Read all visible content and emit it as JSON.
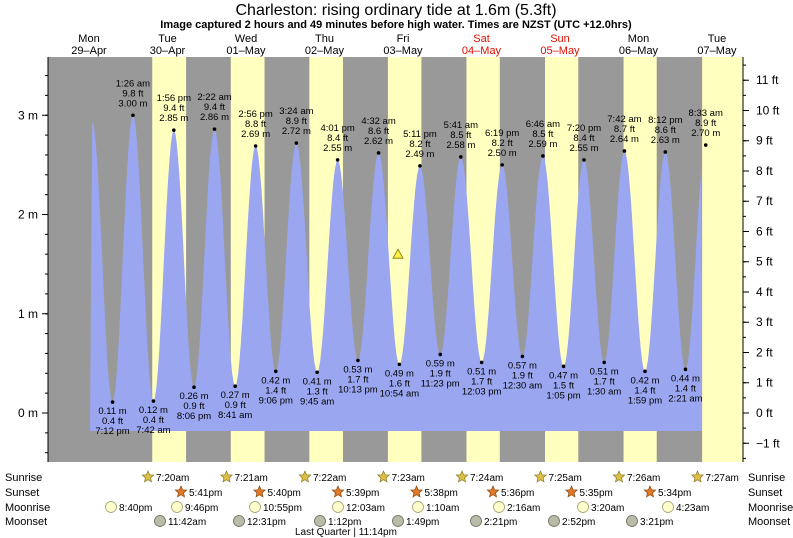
{
  "title": "Charleston: rising  ordinary tide at 1.6m (5.3ft)",
  "subtitle": "Image captured 2 hours and 49 minutes before high water. Times are NZST (UTC +12.0hrs)",
  "colors": {
    "night": "#999999",
    "day": "#ffffc0",
    "water": "#9aa6f0",
    "weekend_day": "#dd1100",
    "weekday_day": "#000000"
  },
  "chart_data": {
    "type": "area",
    "title": "Charleston: rising  ordinary tide at 1.6m (5.3ft)",
    "left_axis": {
      "unit": "m",
      "ticks": [
        0,
        1,
        2,
        3
      ],
      "tick_labels": [
        "0 m",
        "1 m",
        "2 m",
        "3 m"
      ]
    },
    "right_axis": {
      "unit": "ft",
      "ticks": [
        -1,
        0,
        1,
        2,
        3,
        4,
        5,
        6,
        7,
        8,
        9,
        10,
        11
      ],
      "tick_labels": [
        "−1 ft",
        "0 ft",
        "1 ft",
        "2 ft",
        "3 ft",
        "4 ft",
        "5 ft",
        "6 ft",
        "7 ft",
        "8 ft",
        "9 ft",
        "10 ft",
        "11 ft"
      ]
    },
    "ylim_m": [
      -0.5,
      3.6
    ],
    "days": [
      {
        "name": "Mon",
        "date": "29–Apr",
        "weekend": false
      },
      {
        "name": "Tue",
        "date": "30–Apr",
        "weekend": false
      },
      {
        "name": "Wed",
        "date": "01–May",
        "weekend": false
      },
      {
        "name": "Thu",
        "date": "02–May",
        "weekend": false
      },
      {
        "name": "Fri",
        "date": "03–May",
        "weekend": false
      },
      {
        "name": "Sat",
        "date": "04–May",
        "weekend": true
      },
      {
        "name": "Sun",
        "date": "05–May",
        "weekend": true
      },
      {
        "name": "Mon",
        "date": "06–May",
        "weekend": false
      },
      {
        "name": "Tue",
        "date": "07–May",
        "weekend": false
      }
    ],
    "tides": [
      {
        "kind": "low",
        "day": "Mon",
        "time": "7:12 pm",
        "m": "0.11 m",
        "ft": "0.4 ft",
        "value": 0.11
      },
      {
        "kind": "high",
        "day": "Tue",
        "time": "1:26 am",
        "m": "3.00 m",
        "ft": "9.8 ft",
        "value": 3.0
      },
      {
        "kind": "low",
        "day": "Tue",
        "time": "7:42 am",
        "m": "0.12 m",
        "ft": "0.4 ft",
        "value": 0.12
      },
      {
        "kind": "high",
        "day": "Tue",
        "time": "1:56 pm",
        "m": "2.85 m",
        "ft": "9.4 ft",
        "value": 2.85
      },
      {
        "kind": "low",
        "day": "Tue",
        "time": "8:06 pm",
        "m": "0.26 m",
        "ft": "0.9 ft",
        "value": 0.26
      },
      {
        "kind": "high",
        "day": "Wed",
        "time": "2:22 am",
        "m": "2.86 m",
        "ft": "9.4 ft",
        "value": 2.86
      },
      {
        "kind": "low",
        "day": "Wed",
        "time": "8:41 am",
        "m": "0.27 m",
        "ft": "0.9 ft",
        "value": 0.27
      },
      {
        "kind": "high",
        "day": "Wed",
        "time": "2:56 pm",
        "m": "2.69 m",
        "ft": "8.8 ft",
        "value": 2.69
      },
      {
        "kind": "low",
        "day": "Wed",
        "time": "9:06 pm",
        "m": "0.42 m",
        "ft": "1.4 ft",
        "value": 0.42
      },
      {
        "kind": "high",
        "day": "Thu",
        "time": "3:24 am",
        "m": "2.72 m",
        "ft": "8.9 ft",
        "value": 2.72
      },
      {
        "kind": "low",
        "day": "Thu",
        "time": "9:45 am",
        "m": "0.41 m",
        "ft": "1.3 ft",
        "value": 0.41
      },
      {
        "kind": "high",
        "day": "Thu",
        "time": "4:01 pm",
        "m": "2.55 m",
        "ft": "8.4 ft",
        "value": 2.55
      },
      {
        "kind": "low",
        "day": "Thu",
        "time": "10:13 pm",
        "m": "0.53 m",
        "ft": "1.7 ft",
        "value": 0.53
      },
      {
        "kind": "high",
        "day": "Fri",
        "time": "4:32 am",
        "m": "2.62 m",
        "ft": "8.6 ft",
        "value": 2.62
      },
      {
        "kind": "low",
        "day": "Fri",
        "time": "10:54 am",
        "m": "0.49 m",
        "ft": "1.6 ft",
        "value": 0.49
      },
      {
        "kind": "high",
        "day": "Fri",
        "time": "5:11 pm",
        "m": "2.49 m",
        "ft": "8.2 ft",
        "value": 2.49
      },
      {
        "kind": "low",
        "day": "Fri",
        "time": "11:23 pm",
        "m": "0.59 m",
        "ft": "1.9 ft",
        "value": 0.59
      },
      {
        "kind": "high",
        "day": "Sat",
        "time": "5:41 am",
        "m": "2.58 m",
        "ft": "8.5 ft",
        "value": 2.58
      },
      {
        "kind": "low",
        "day": "Sat",
        "time": "12:03 pm",
        "m": "0.51 m",
        "ft": "1.7 ft",
        "value": 0.51
      },
      {
        "kind": "high",
        "day": "Sat",
        "time": "6:19 pm",
        "m": "2.50 m",
        "ft": "8.2 ft",
        "value": 2.5
      },
      {
        "kind": "low",
        "day": "Sun",
        "time": "12:30 am",
        "m": "0.57 m",
        "ft": "1.9 ft",
        "value": 0.57
      },
      {
        "kind": "high",
        "day": "Sun",
        "time": "6:46 am",
        "m": "2.59 m",
        "ft": "8.5 ft",
        "value": 2.59
      },
      {
        "kind": "low",
        "day": "Sun",
        "time": "1:05 pm",
        "m": "0.47 m",
        "ft": "1.5 ft",
        "value": 0.47
      },
      {
        "kind": "high",
        "day": "Sun",
        "time": "7:20 pm",
        "m": "2.55 m",
        "ft": "8.4 ft",
        "value": 2.55
      },
      {
        "kind": "low",
        "day": "Mon",
        "time": "1:30 am",
        "m": "0.51 m",
        "ft": "1.7 ft",
        "value": 0.51
      },
      {
        "kind": "high",
        "day": "Mon",
        "time": "7:42 am",
        "m": "2.64 m",
        "ft": "8.7 ft",
        "value": 2.64
      },
      {
        "kind": "low",
        "day": "Mon",
        "time": "1:59 pm",
        "m": "0.42 m",
        "ft": "1.4 ft",
        "value": 0.42
      },
      {
        "kind": "high",
        "day": "Mon",
        "time": "8:12 pm",
        "m": "2.63 m",
        "ft": "8.6 ft",
        "value": 2.63
      },
      {
        "kind": "low",
        "day": "Tue",
        "time": "2:21 am",
        "m": "0.44 m",
        "ft": "1.4 ft",
        "value": 0.44
      },
      {
        "kind": "high",
        "day": "Tue",
        "time": "8:33 am",
        "m": "2.70 m",
        "ft": "8.9 ft",
        "value": 2.7
      }
    ],
    "current_level_m": 1.6
  },
  "rows": {
    "sunrise": {
      "label": "Sunrise",
      "times": [
        "7:20am",
        "7:21am",
        "7:22am",
        "7:23am",
        "7:24am",
        "7:25am",
        "7:26am",
        "7:27am"
      ]
    },
    "sunset": {
      "label": "Sunset",
      "times": [
        "5:41pm",
        "5:40pm",
        "5:39pm",
        "5:38pm",
        "5:36pm",
        "5:35pm",
        "5:34pm"
      ]
    },
    "moonrise": {
      "label": "Moonrise",
      "times": [
        "8:40pm",
        "9:46pm",
        "10:55pm",
        "12:03am",
        "1:10am",
        "2:16am",
        "3:20am",
        "4:23am"
      ]
    },
    "moonset": {
      "label": "Moonset",
      "times": [
        "11:42am",
        "12:31pm",
        "1:12pm",
        "1:49pm",
        "2:21pm",
        "2:52pm",
        "3:21pm"
      ]
    },
    "phase": "Last Quarter | 11:14pm"
  }
}
